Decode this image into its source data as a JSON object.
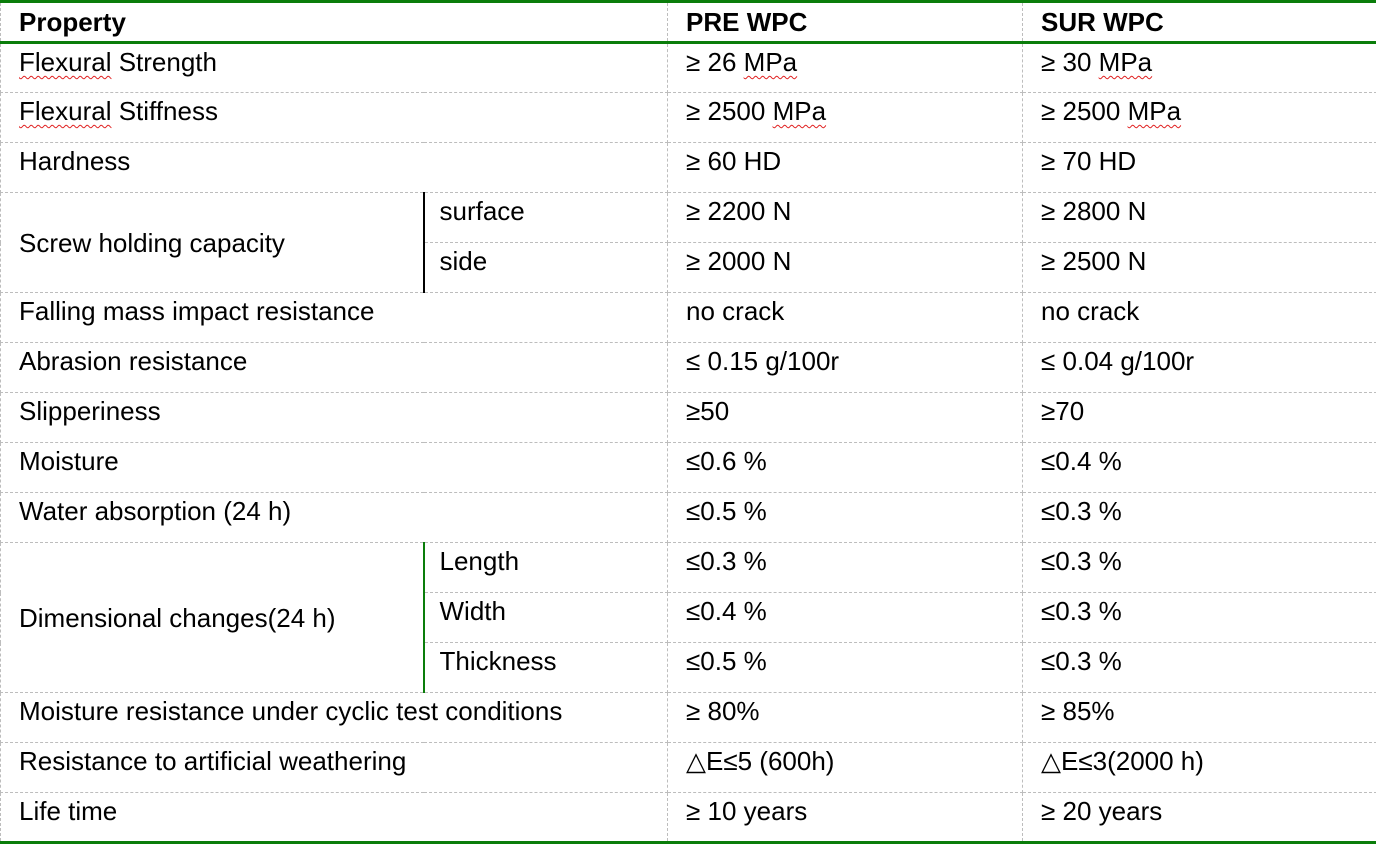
{
  "header": {
    "property": "Property",
    "pre": "PRE WPC",
    "sur": "SUR WPC"
  },
  "rows": {
    "flex_strength": {
      "label_a": "Flexural",
      "label_b": " Strength",
      "pre_a": "≥ 26 ",
      "pre_b": "MPa",
      "sur_a": "≥ 30 ",
      "sur_b": "MPa"
    },
    "flex_stiffness": {
      "label_a": "Flexural",
      "label_b": " Stiffness",
      "pre_a": "≥ 2500 ",
      "pre_b": "MPa",
      "sur_a": "≥ 2500 ",
      "sur_b": "MPa"
    },
    "hardness": {
      "label": "Hardness",
      "pre": "≥ 60 HD",
      "sur": "≥ 70 HD"
    },
    "screw": {
      "label": "Screw holding capacity",
      "surface": {
        "label": "surface",
        "pre": "≥ 2200 N",
        "sur": "≥ 2800 N"
      },
      "side": {
        "label": "side",
        "pre": "≥ 2000 N",
        "sur": "≥ 2500 N"
      }
    },
    "falling": {
      "label": "Falling mass impact resistance",
      "pre": "no crack",
      "sur": "no crack"
    },
    "abrasion": {
      "label": "Abrasion resistance",
      "pre": "≤ 0.15 g/100r",
      "sur": "≤ 0.04 g/100r"
    },
    "slipperiness": {
      "label": "Slipperiness",
      "pre": "≥50",
      "sur": "≥70"
    },
    "moisture": {
      "label": "Moisture",
      "pre": "≤0.6 %",
      "sur": "≤0.4 %"
    },
    "water": {
      "label": "Water absorption (24 h)",
      "pre": "≤0.5 %",
      "sur": "≤0.3 %"
    },
    "dimensional": {
      "label": "Dimensional changes(24 h)",
      "length": {
        "label": "Length",
        "pre": "≤0.3 %",
        "sur": "≤0.3 %"
      },
      "width": {
        "label": "Width",
        "pre": "≤0.4 %",
        "sur": "≤0.3 %"
      },
      "thickness": {
        "label": "Thickness",
        "pre": "≤0.5 %",
        "sur": "≤0.3 %"
      }
    },
    "cyclic": {
      "label": "Moisture resistance under cyclic test conditions",
      "pre": "≥ 80%",
      "sur": "≥ 85%"
    },
    "weathering": {
      "label": "Resistance to artificial weathering",
      "pre": "△E≤5 (600h)",
      "sur": "△E≤3(2000 h)"
    },
    "lifetime": {
      "label": "Life time",
      "pre": "≥ 10 years",
      "sur": "≥ 20 years"
    }
  }
}
